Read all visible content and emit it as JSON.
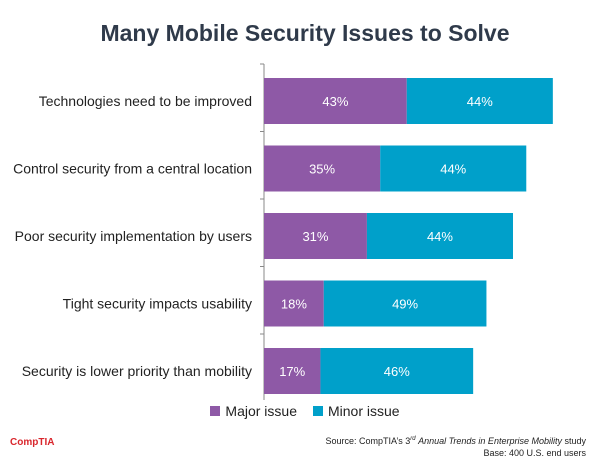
{
  "colors": {
    "major": "#8e59a6",
    "minor": "#00a0ca",
    "title": "#2f3a4a",
    "brand": "#d9262c"
  },
  "chart_data": {
    "type": "bar",
    "orientation": "horizontal",
    "stacked": true,
    "title": "Many Mobile Security Issues to Solve",
    "categories": [
      "Technologies need to be improved",
      "Control security from a central location",
      "Poor security implementation by users",
      "Tight security impacts usability",
      "Security is lower priority than mobility"
    ],
    "series": [
      {
        "name": "Major issue",
        "values": [
          43,
          35,
          31,
          18,
          17
        ],
        "labels": [
          "43%",
          "35%",
          "31%",
          "18%",
          "17%"
        ]
      },
      {
        "name": "Minor issue",
        "values": [
          44,
          44,
          44,
          49,
          46
        ],
        "labels": [
          "44%",
          "44%",
          "44%",
          "49%",
          "46%"
        ]
      }
    ],
    "xlim": [
      0,
      100
    ],
    "grid": false,
    "legend": "bottom"
  },
  "footer": {
    "brand": "CompTIA",
    "source_prefix": "Source: CompTIA’s 3",
    "source_sup": "rd",
    "source_italic": "Annual Trends in Enterprise Mobility",
    "source_suffix": "study",
    "base": "Base: 400 U.S. end users"
  }
}
